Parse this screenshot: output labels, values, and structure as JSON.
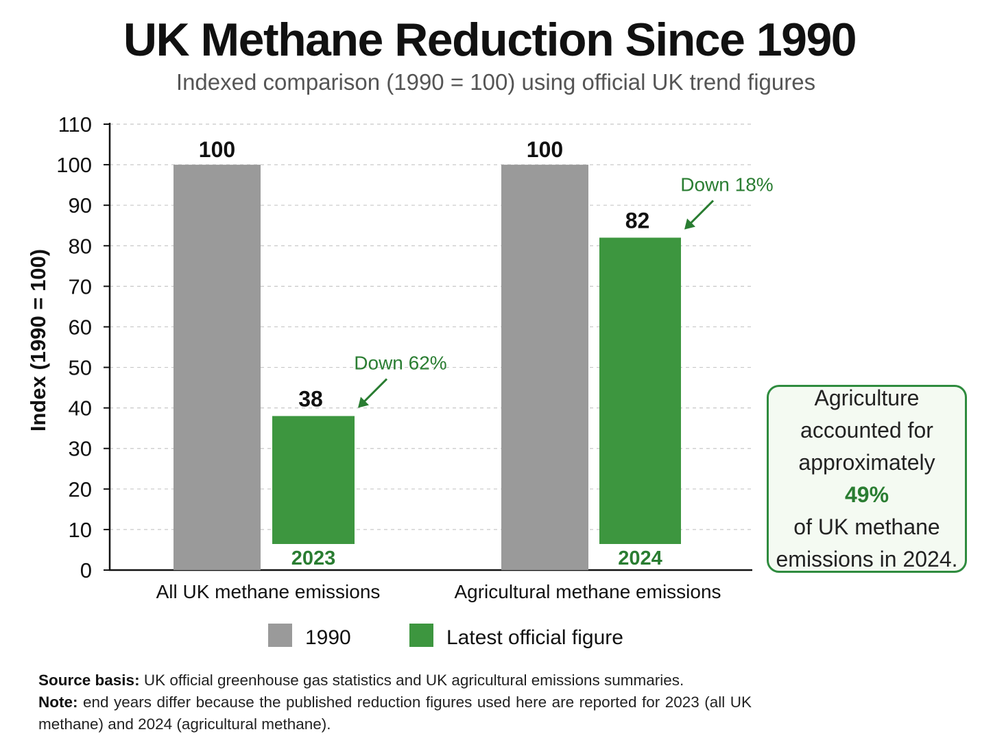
{
  "title": "UK Methane Reduction Since 1990",
  "subtitle": "Indexed comparison (1990 = 100) using official UK trend figures",
  "colors": {
    "series_1990": "#9a9a9a",
    "series_latest": "#3d963f",
    "annotation": "#2a7d32",
    "callout_border": "#2e8b3e",
    "callout_background": "#f4faf2"
  },
  "chart_data": {
    "type": "bar",
    "categories": [
      "All UK methane emissions",
      "Agricultural methane emissions"
    ],
    "series": [
      {
        "name": "1990",
        "values": [
          100,
          100
        ]
      },
      {
        "name": "Latest official figure",
        "values": [
          38,
          82
        ]
      }
    ],
    "year_labels": [
      "2023",
      "2024"
    ],
    "annotations": [
      "Down 62%",
      "Down 18%"
    ],
    "xlabel": "",
    "ylabel": "Index (1990 = 100)",
    "ylim": [
      0,
      110
    ],
    "yticks": [
      "0",
      "10",
      "20",
      "30",
      "40",
      "50",
      "60",
      "70",
      "80",
      "90",
      "100",
      "110"
    ],
    "grid": true,
    "legend_position": "bottom"
  },
  "callout": {
    "line1": "Agriculture",
    "line2": "accounted for",
    "line3_prefix": "approximately",
    "line3_value": "49%",
    "line4": "of UK methane",
    "line5": "emissions in 2024."
  },
  "footer": {
    "source_label": "Source basis:",
    "source_text": "UK official greenhouse gas statistics and UK agricultural emissions summaries.",
    "note_label": "Note:",
    "note_text": "end years differ because the published reduction figures used here are reported for 2023 (all UK methane) and 2024 (agricultural methane)."
  }
}
